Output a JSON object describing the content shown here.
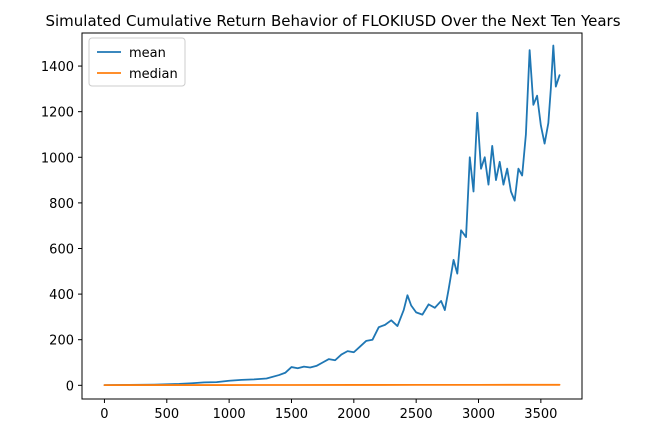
{
  "chart_data": {
    "type": "line",
    "title": "Simulated Cumulative Return Behavior of FLOKIUSD Over the Next Ten Years",
    "xlabel": "",
    "ylabel": "",
    "xlim": [
      -180,
      3830
    ],
    "ylim": [
      -60,
      1545
    ],
    "xticks": [
      0,
      500,
      1000,
      1500,
      2000,
      2500,
      3000,
      3500
    ],
    "yticks": [
      0,
      200,
      400,
      600,
      800,
      1000,
      1200,
      1400
    ],
    "grid": false,
    "legend": "top-left",
    "series": [
      {
        "name": "mean",
        "color": "#1f77b4",
        "points": [
          [
            0,
            1
          ],
          [
            200,
            2
          ],
          [
            400,
            3
          ],
          [
            600,
            6
          ],
          [
            700,
            9
          ],
          [
            800,
            13
          ],
          [
            900,
            14
          ],
          [
            1000,
            20
          ],
          [
            1100,
            24
          ],
          [
            1200,
            26
          ],
          [
            1300,
            30
          ],
          [
            1400,
            45
          ],
          [
            1450,
            55
          ],
          [
            1500,
            80
          ],
          [
            1550,
            75
          ],
          [
            1600,
            82
          ],
          [
            1650,
            78
          ],
          [
            1700,
            85
          ],
          [
            1750,
            100
          ],
          [
            1800,
            115
          ],
          [
            1850,
            110
          ],
          [
            1900,
            135
          ],
          [
            1950,
            150
          ],
          [
            2000,
            145
          ],
          [
            2050,
            170
          ],
          [
            2100,
            195
          ],
          [
            2150,
            200
          ],
          [
            2200,
            255
          ],
          [
            2250,
            265
          ],
          [
            2300,
            285
          ],
          [
            2350,
            260
          ],
          [
            2400,
            330
          ],
          [
            2430,
            395
          ],
          [
            2460,
            350
          ],
          [
            2500,
            320
          ],
          [
            2550,
            310
          ],
          [
            2600,
            355
          ],
          [
            2650,
            340
          ],
          [
            2700,
            370
          ],
          [
            2730,
            330
          ],
          [
            2760,
            420
          ],
          [
            2800,
            550
          ],
          [
            2830,
            490
          ],
          [
            2860,
            680
          ],
          [
            2900,
            650
          ],
          [
            2930,
            1000
          ],
          [
            2960,
            850
          ],
          [
            2990,
            1195
          ],
          [
            3020,
            950
          ],
          [
            3050,
            1000
          ],
          [
            3080,
            880
          ],
          [
            3110,
            1050
          ],
          [
            3140,
            900
          ],
          [
            3170,
            980
          ],
          [
            3200,
            880
          ],
          [
            3230,
            950
          ],
          [
            3260,
            850
          ],
          [
            3290,
            810
          ],
          [
            3320,
            950
          ],
          [
            3350,
            920
          ],
          [
            3380,
            1100
          ],
          [
            3410,
            1470
          ],
          [
            3440,
            1230
          ],
          [
            3470,
            1270
          ],
          [
            3500,
            1140
          ],
          [
            3530,
            1060
          ],
          [
            3560,
            1150
          ],
          [
            3580,
            1300
          ],
          [
            3600,
            1490
          ],
          [
            3620,
            1310
          ],
          [
            3650,
            1360
          ]
        ]
      },
      {
        "name": "median",
        "color": "#ff7f0e",
        "points": [
          [
            0,
            1
          ],
          [
            500,
            1.1
          ],
          [
            1000,
            1.2
          ],
          [
            1500,
            1.4
          ],
          [
            2000,
            1.6
          ],
          [
            2500,
            1.8
          ],
          [
            3000,
            2
          ],
          [
            3650,
            2.3
          ]
        ]
      }
    ]
  }
}
